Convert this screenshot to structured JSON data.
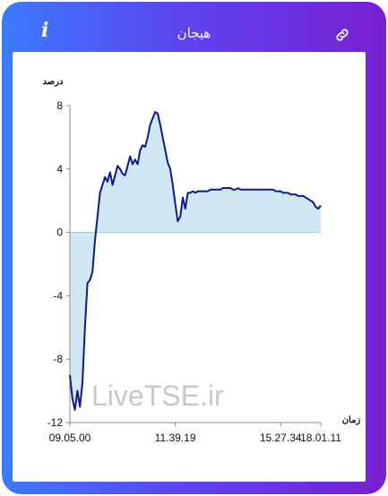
{
  "header": {
    "info_icon": "info-icon",
    "title": "هیجان",
    "link_icon": "link-icon"
  },
  "watermark": "LiveTSE.ir",
  "colors": {
    "frame_left": "#3a7bff",
    "frame_right": "#7a1fd2",
    "line": "#0b1a8c",
    "area": "#cfe8f3"
  },
  "chart_data": {
    "type": "area",
    "ylabel": "درصد",
    "xlabel": "زمان",
    "ylim": [
      -12,
      8
    ],
    "yticks": [
      8,
      4,
      0,
      -4,
      -8,
      -12
    ],
    "xtick_labels": [
      "09.05.00",
      "11.39.19",
      "15.27.34",
      "18.01.11"
    ],
    "grid": false,
    "series": [
      {
        "x": [
          0,
          1,
          2,
          3,
          4,
          5,
          6,
          7,
          8,
          9,
          10,
          11,
          12,
          13,
          14,
          15,
          16,
          17,
          18,
          19,
          20,
          21,
          22,
          23,
          24,
          25,
          26,
          27,
          28,
          29,
          30,
          31,
          32,
          33,
          34,
          35,
          36,
          37,
          38,
          39,
          40,
          41,
          42,
          43,
          44,
          45,
          46,
          47,
          48,
          49,
          50,
          51,
          52,
          53,
          54,
          55,
          56,
          57,
          58,
          59,
          60,
          61,
          62,
          63,
          64,
          65,
          66,
          67,
          68,
          69,
          70,
          71,
          72,
          73,
          74,
          75,
          76,
          77,
          78,
          79,
          80,
          81,
          82,
          83,
          84,
          85,
          86,
          87,
          88,
          89,
          90,
          91,
          92,
          93,
          94,
          95,
          96,
          97,
          98,
          99,
          100
        ],
        "y": [
          -9.0,
          -10.5,
          -11.2,
          -10.0,
          -11.0,
          -9.5,
          -6.0,
          -3.2,
          -3.0,
          -2.5,
          -0.5,
          1.0,
          2.5,
          3.0,
          3.5,
          3.2,
          3.8,
          3.0,
          3.6,
          4.2,
          4.0,
          3.7,
          3.6,
          4.2,
          4.8,
          4.3,
          4.6,
          4.3,
          5.2,
          5.5,
          5.4,
          6.0,
          6.8,
          7.2,
          7.6,
          7.5,
          6.8,
          6.0,
          5.2,
          4.4,
          4.0,
          3.0,
          1.8,
          0.7,
          1.0,
          2.2,
          1.5,
          2.5,
          2.5,
          2.6,
          2.5,
          2.6,
          2.6,
          2.6,
          2.6,
          2.6,
          2.7,
          2.7,
          2.7,
          2.7,
          2.7,
          2.8,
          2.8,
          2.8,
          2.8,
          2.7,
          2.7,
          2.8,
          2.7,
          2.7,
          2.7,
          2.7,
          2.7,
          2.7,
          2.7,
          2.7,
          2.7,
          2.7,
          2.7,
          2.7,
          2.7,
          2.7,
          2.6,
          2.6,
          2.6,
          2.5,
          2.5,
          2.5,
          2.4,
          2.4,
          2.4,
          2.3,
          2.3,
          2.3,
          2.2,
          2.1,
          2.0,
          1.9,
          1.6,
          1.5,
          1.7
        ]
      }
    ]
  }
}
